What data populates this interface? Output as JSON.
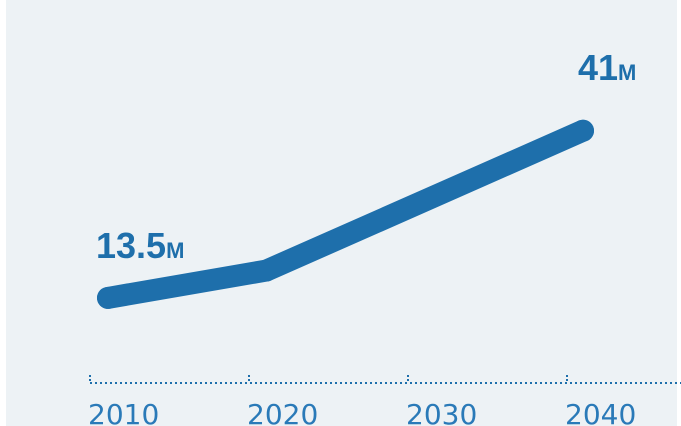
{
  "chart_data": {
    "type": "line",
    "x": [
      2010,
      2020,
      2040
    ],
    "values": [
      13.5,
      18,
      41
    ],
    "unit": "M",
    "annotations": [
      {
        "x": 2010,
        "value": "13.5",
        "unit": "M"
      },
      {
        "x": 2040,
        "value": "41",
        "unit": "M"
      }
    ],
    "xticks": [
      "2010",
      "2020",
      "2030",
      "2040"
    ],
    "xlim": [
      2010,
      2040
    ],
    "ylim": [
      0,
      50
    ],
    "grid": false,
    "colors": {
      "line": "#1e6fab",
      "axis": "#1e6fab",
      "background": "#edf2f5",
      "tick_label": "#2a7ab8"
    }
  }
}
